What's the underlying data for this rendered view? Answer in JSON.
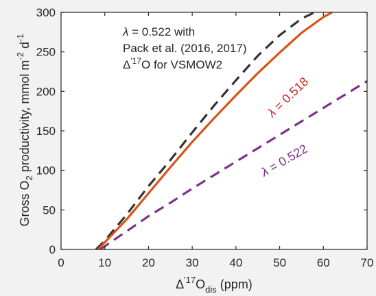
{
  "chart_data": {
    "type": "line",
    "xlabel": {
      "main": "Δ",
      "sup": "'17",
      "mid": "O",
      "sub": "dis",
      "tail": " (ppm)"
    },
    "ylabel": {
      "p1": "Gross O",
      "sub1": "2",
      "p2": " productivity, mmol m",
      "sup1": "-2",
      "p3": " d",
      "sup2": "-1"
    },
    "xlim": [
      0,
      70
    ],
    "ylim": [
      0,
      300
    ],
    "x_ticks": [
      0,
      10,
      20,
      30,
      40,
      50,
      60,
      70
    ],
    "y_ticks": [
      0,
      50,
      100,
      150,
      200,
      250,
      300
    ],
    "grid": false,
    "annotation_lines": [
      {
        "sym": "λ",
        "rest": " = 0.522 with"
      },
      {
        "text": "Pack et al. (2016, 2017)"
      },
      {
        "main": "Δ",
        "sup": "'17",
        "rest": "O for VSMOW2"
      }
    ],
    "series": [
      {
        "style": "solid",
        "color": "#d95319",
        "x": [
          8.5,
          10,
          15,
          20,
          25,
          30,
          35,
          40,
          45,
          50,
          55,
          60,
          62
        ],
        "y": [
          0,
          9,
          38,
          71,
          104,
          136,
          166,
          195,
          223,
          249,
          274,
          294,
          300
        ],
        "label": {
          "sym": "λ",
          "rest": " = 0.518"
        },
        "label_color": "#c8261e"
      },
      {
        "style": "dashed",
        "color": "#333333",
        "x": [
          8,
          10,
          15,
          20,
          25,
          30,
          35,
          40,
          45,
          50,
          55,
          58
        ],
        "y": [
          0,
          11,
          44,
          80,
          113,
          148,
          182,
          214,
          245,
          271,
          292,
          300
        ]
      },
      {
        "style": "dashed",
        "color": "#7e2f8e",
        "x": [
          9,
          10,
          15,
          20,
          25,
          30,
          35,
          40,
          45,
          50,
          55,
          60,
          65,
          70
        ],
        "y": [
          0,
          4,
          23,
          42,
          59,
          77,
          94,
          111,
          128,
          145,
          162,
          179,
          196,
          213
        ],
        "label": {
          "sym": "λ",
          "rest": " = 0.522"
        },
        "label_color": "#7e2f8e"
      }
    ]
  }
}
